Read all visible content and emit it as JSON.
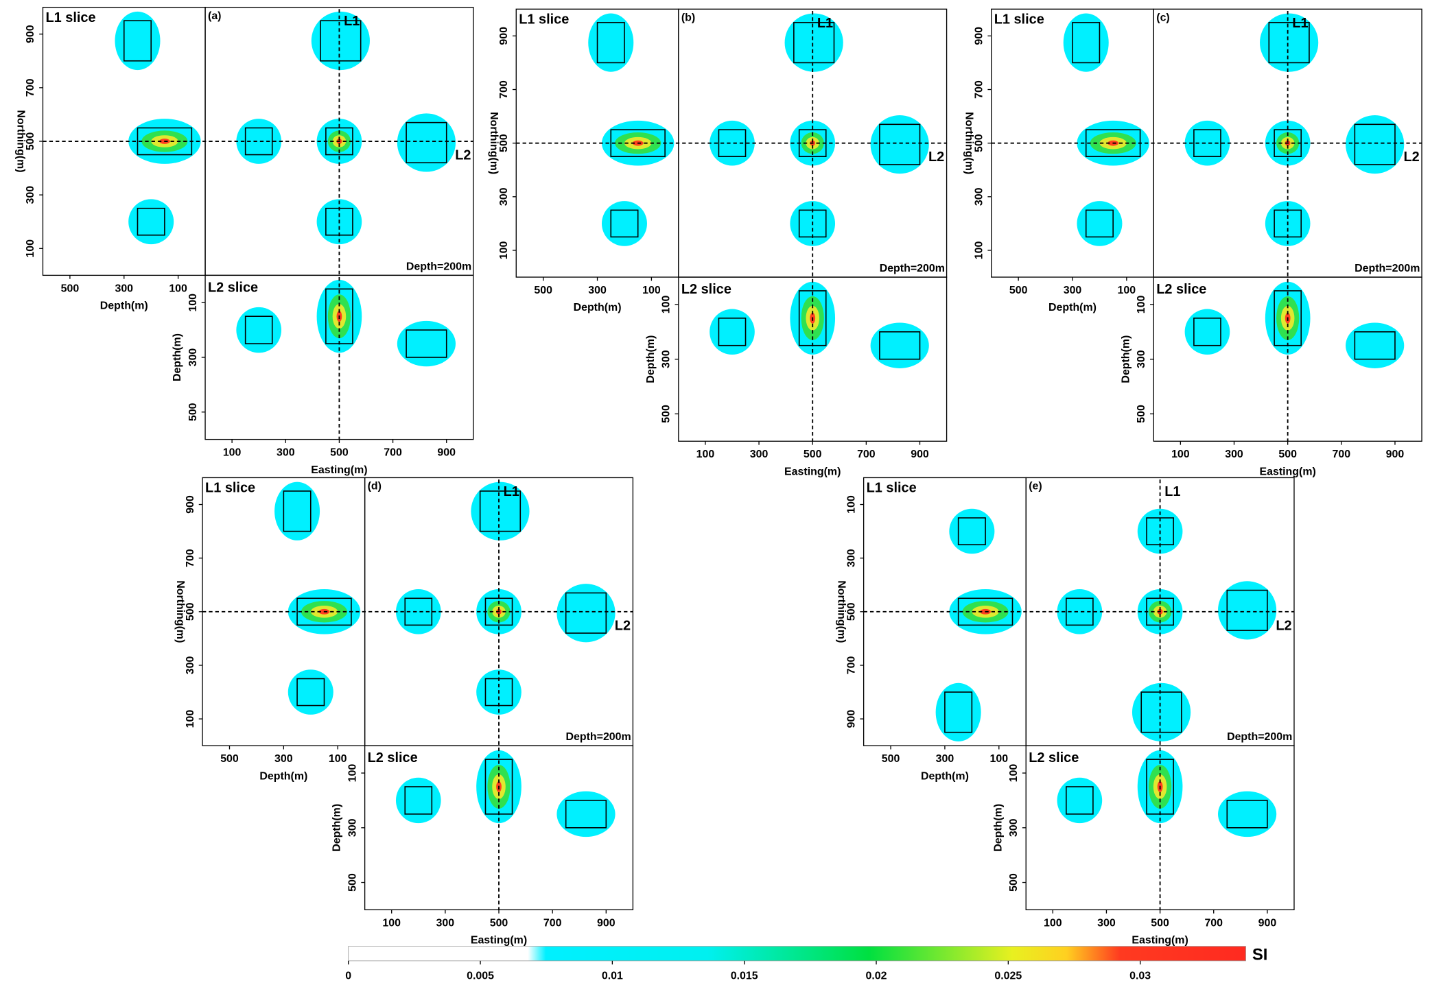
{
  "panels": [
    {
      "label": "(a)",
      "l1_title": "L1 slice",
      "l2_title": "L2 slice",
      "depth_note": "Depth=200m",
      "line1": "L1",
      "line2": "L2",
      "northing_label": "Northing(m)",
      "l1_depth_label": "Depth(m)",
      "l2_depth_label": "Depth(m)",
      "easting_label": "Easting(m)",
      "northing_ylim": [
        0,
        1000
      ],
      "northing_ticks": [
        100,
        300,
        500,
        700,
        900
      ],
      "l1_depth_xlim": [
        600,
        0
      ],
      "l1_depth_ticks": [
        500,
        300,
        100
      ],
      "easting_xlim": [
        0,
        1000
      ],
      "easting_ticks": [
        100,
        300,
        500,
        700,
        900
      ],
      "l2_depth_ylim": [
        0,
        600
      ],
      "l2_depth_ticks": [
        100,
        300,
        500
      ]
    },
    {
      "label": "(b)",
      "l1_title": "L1 slice",
      "l2_title": "L2 slice",
      "depth_note": "Depth=200m",
      "line1": "L1",
      "line2": "L2",
      "northing_label": "Northing(m)",
      "l1_depth_label": "Depth(m)",
      "l2_depth_label": "Depth(m)",
      "easting_label": "Easting(m)",
      "northing_ylim": [
        0,
        1000
      ],
      "northing_ticks": [
        100,
        300,
        500,
        700,
        900
      ],
      "l1_depth_xlim": [
        600,
        0
      ],
      "l1_depth_ticks": [
        500,
        300,
        100
      ],
      "easting_xlim": [
        0,
        1000
      ],
      "easting_ticks": [
        100,
        300,
        500,
        700,
        900
      ],
      "l2_depth_ylim": [
        0,
        600
      ],
      "l2_depth_ticks": [
        100,
        300,
        500
      ]
    },
    {
      "label": "(c)",
      "l1_title": "L1 slice",
      "l2_title": "L2 slice",
      "depth_note": "Depth=200m",
      "line1": "L1",
      "line2": "L2",
      "northing_label": "Northing(m)",
      "l1_depth_label": "Depth(m)",
      "l2_depth_label": "Depth(m)",
      "easting_label": "Easting(m)",
      "northing_ylim": [
        0,
        1000
      ],
      "northing_ticks": [
        100,
        300,
        500,
        700,
        900
      ],
      "l1_depth_xlim": [
        600,
        0
      ],
      "l1_depth_ticks": [
        500,
        300,
        100
      ],
      "easting_xlim": [
        0,
        1000
      ],
      "easting_ticks": [
        100,
        300,
        500,
        700,
        900
      ],
      "l2_depth_ylim": [
        0,
        600
      ],
      "l2_depth_ticks": [
        100,
        300,
        500
      ]
    },
    {
      "label": "(d)",
      "l1_title": "L1 slice",
      "l2_title": "L2 slice",
      "depth_note": "Depth=200m",
      "line1": "L1",
      "line2": "L2",
      "northing_label": "Northing(m)",
      "l1_depth_label": "Depth(m)",
      "l2_depth_label": "Depth(m)",
      "easting_label": "Easting(m)",
      "northing_ylim": [
        0,
        1000
      ],
      "northing_ticks": [
        100,
        300,
        500,
        700,
        900
      ],
      "l1_depth_xlim": [
        600,
        0
      ],
      "l1_depth_ticks": [
        500,
        300,
        100
      ],
      "easting_xlim": [
        0,
        1000
      ],
      "easting_ticks": [
        100,
        300,
        500,
        700,
        900
      ],
      "l2_depth_ylim": [
        0,
        600
      ],
      "l2_depth_ticks": [
        100,
        300,
        500
      ]
    },
    {
      "label": "(e)",
      "l1_title": "L1 slice",
      "l2_title": "L2 slice",
      "depth_note": "Depth=200m",
      "line1": "L1",
      "line2": "L2",
      "northing_label": "Northing(m)",
      "l1_depth_label": "Depth(m)",
      "l2_depth_label": "Depth(m)",
      "easting_label": "Easting(m)",
      "northing_ylim": [
        1000,
        0
      ],
      "northing_ticks": [
        100,
        300,
        500,
        700,
        900
      ],
      "l1_depth_xlim": [
        600,
        0
      ],
      "l1_depth_ticks": [
        500,
        300,
        100
      ],
      "easting_xlim": [
        0,
        1000
      ],
      "easting_ticks": [
        100,
        300,
        500,
        700,
        900
      ],
      "l2_depth_ylim": [
        0,
        600
      ],
      "l2_depth_ticks": [
        100,
        300,
        500
      ]
    }
  ],
  "colorbar": {
    "label": "SI",
    "lim": [
      0,
      0.034
    ],
    "ticks": [
      0,
      0.005,
      0.01,
      0.015,
      0.02,
      0.025,
      0.03
    ]
  }
}
